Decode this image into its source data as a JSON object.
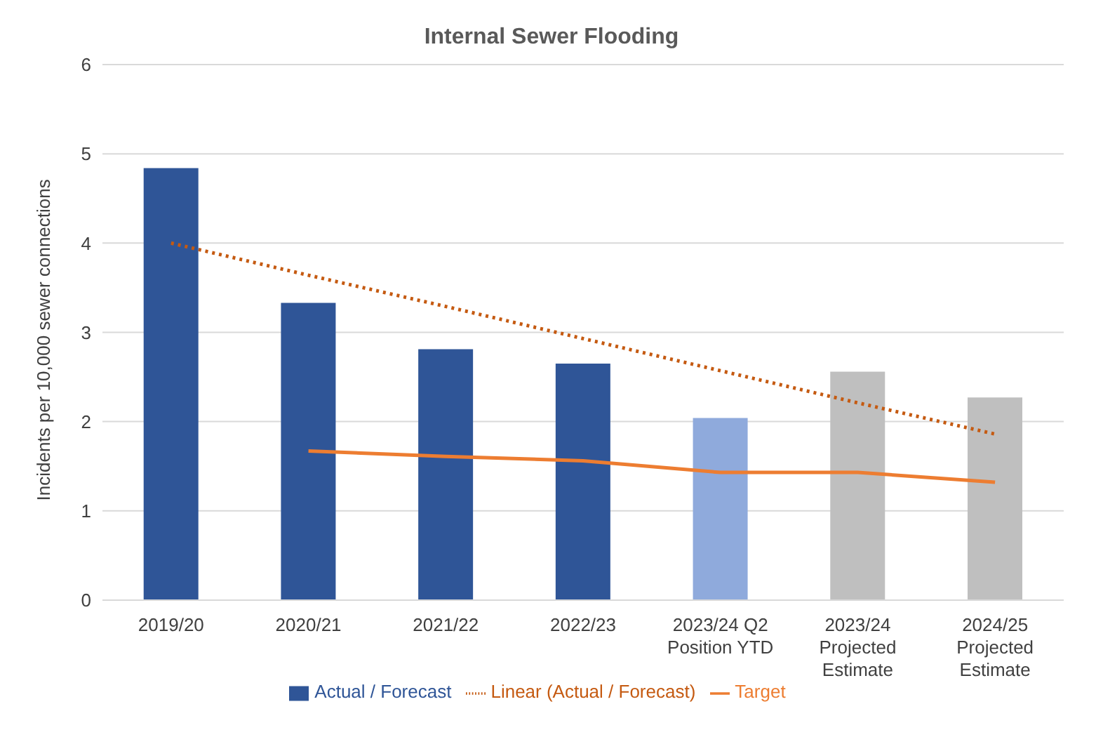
{
  "chart_data": {
    "type": "bar",
    "title": "Internal Sewer Flooding",
    "ylabel": "Incidents per 10,000 sewer connections",
    "categories": [
      "2019/20",
      "2020/21",
      "2021/22",
      "2022/23",
      "2023/24 Q2 Position YTD",
      "2023/24 Projected Estimate",
      "2024/25 Projected Estimate"
    ],
    "series": [
      {
        "name": "Actual / Forecast",
        "color": "#2f5597",
        "colors": [
          "#2f5597",
          "#2f5597",
          "#2f5597",
          "#2f5597",
          "#8faadc",
          "#bfbfbf",
          "#bfbfbf"
        ],
        "values": [
          4.84,
          3.33,
          2.81,
          2.65,
          2.04,
          2.56,
          2.27
        ]
      },
      {
        "name": "Target",
        "type": "line",
        "color": "#ed7d31",
        "line_style": "solid",
        "values": [
          null,
          1.67,
          1.61,
          1.56,
          1.43,
          1.43,
          1.32
        ]
      },
      {
        "name": "Linear (Actual / Forecast)",
        "type": "line",
        "color": "#c55a11",
        "line_style": "dotted",
        "values": [
          4.0,
          3.64,
          3.29,
          2.93,
          2.57,
          2.21,
          1.86
        ]
      }
    ],
    "ylim": [
      0,
      6
    ],
    "yticks": [
      0,
      1,
      2,
      3,
      4,
      5,
      6
    ],
    "grid": "y",
    "legend": "bottom",
    "marker": "none"
  }
}
